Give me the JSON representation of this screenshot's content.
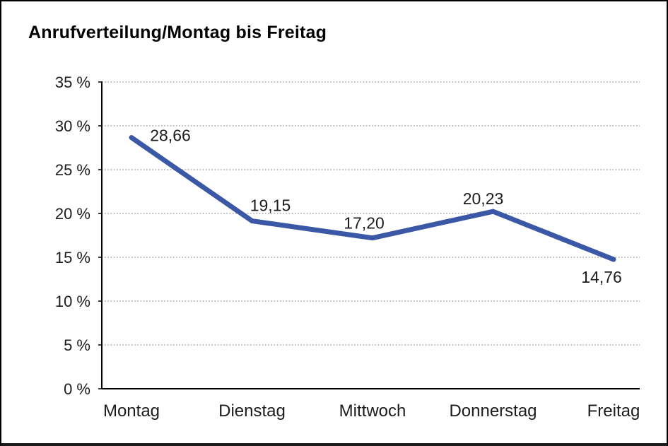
{
  "window": {
    "background": "#FFFFFF",
    "frame_border_color": "#000000"
  },
  "chart_data": {
    "type": "line",
    "title": "Anrufverteilung/Montag bis Freitag",
    "categories": [
      "Montag",
      "Dienstag",
      "Mittwoch",
      "Donnerstag",
      "Freitag"
    ],
    "series": [
      {
        "name": "Anrufverteilung",
        "values": [
          28.66,
          19.15,
          17.2,
          20.23,
          14.76
        ],
        "data_labels": [
          "28,66",
          "19,15",
          "17,20",
          "20,23",
          "14,76"
        ]
      }
    ],
    "xlabel": "",
    "ylabel": "",
    "ylim": [
      0,
      35
    ],
    "ytick_step": 5,
    "ytick_labels": [
      "0 %",
      "5 %",
      "10 %",
      "15 %",
      "20 %",
      "25 %",
      "30 %",
      "35 %"
    ],
    "grid": "horizontal-dotted",
    "gridline_color": "#8F8F8F",
    "legend": "none",
    "line_color": "#3B58A6",
    "axis_color": "#000000",
    "label_color": "#1C1C1C"
  }
}
